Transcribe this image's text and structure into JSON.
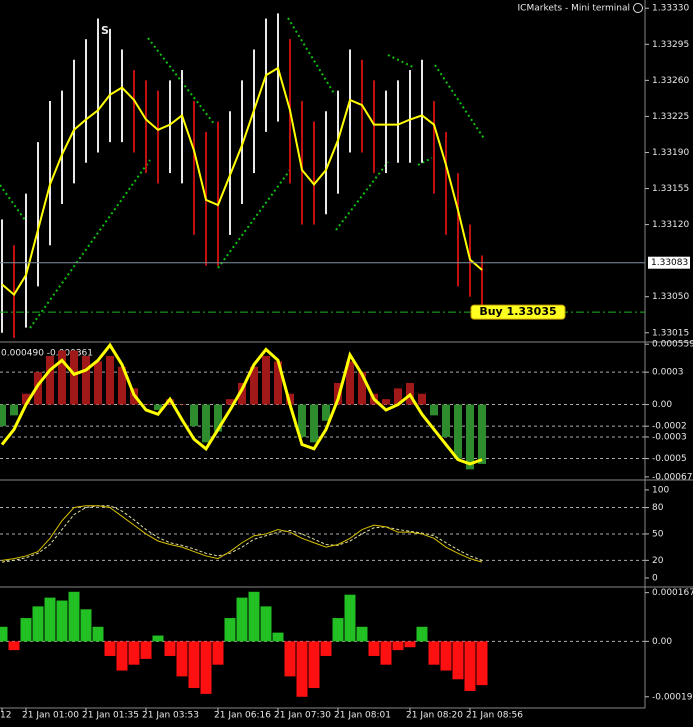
{
  "header": {
    "title": "ICMarkets - Mini terminal"
  },
  "chart_data": [
    {
      "type": "price",
      "annotation": "S",
      "categories": [
        "12",
        null,
        "21 Jan 01:00",
        null,
        null,
        null,
        null,
        "21 Jan 01:35",
        null,
        null,
        null,
        null,
        "21 Jan 03:53",
        null,
        null,
        null,
        null,
        null,
        "21 Jan 06:16",
        null,
        null,
        null,
        null,
        "21 Jan 07:30",
        null,
        null,
        null,
        null,
        "21 Jan 08:01",
        null,
        null,
        null,
        null,
        null,
        "21 Jan 08:20",
        null,
        null,
        null,
        null,
        "21 Jan 08:56",
        null
      ],
      "high": [
        1.33125,
        1.331,
        1.3315,
        1.332,
        1.3324,
        1.3325,
        1.3328,
        1.333,
        1.3332,
        1.3331,
        1.3329,
        1.3327,
        1.3326,
        1.3325,
        1.3326,
        1.3327,
        1.3324,
        1.3321,
        1.3322,
        1.3323,
        1.3326,
        1.3329,
        1.3332,
        1.33325,
        1.333,
        1.3324,
        1.3322,
        1.3323,
        1.3325,
        1.3329,
        1.3328,
        1.3326,
        1.3325,
        1.3326,
        1.3327,
        1.3328,
        1.3324,
        1.3321,
        1.3317,
        1.3312,
        1.3309
      ],
      "low": [
        1.33015,
        1.3301,
        1.3302,
        1.3306,
        1.331,
        1.3314,
        1.3316,
        1.3318,
        1.3319,
        1.332,
        1.332,
        1.3319,
        1.3317,
        1.3316,
        1.3317,
        1.3316,
        1.3311,
        1.3308,
        1.3308,
        1.3311,
        1.3314,
        1.3317,
        1.3321,
        1.3322,
        1.3316,
        1.3312,
        1.3312,
        1.3313,
        1.3315,
        1.3319,
        1.3319,
        1.3317,
        1.3317,
        1.3318,
        1.3318,
        1.3318,
        1.3315,
        1.3311,
        1.3306,
        1.3305,
        1.3304
      ],
      "values": [
        1.33062,
        1.33052,
        1.33071,
        1.33115,
        1.33159,
        1.33188,
        1.33212,
        1.33222,
        1.33231,
        1.33246,
        1.33253,
        1.33241,
        1.33222,
        1.33212,
        1.33217,
        1.33226,
        1.33192,
        1.33144,
        1.33139,
        1.33168,
        1.33197,
        1.33231,
        1.33265,
        1.33272,
        1.33231,
        1.33173,
        1.33159,
        1.33173,
        1.33202,
        1.33241,
        1.33236,
        1.33217,
        1.33217,
        1.33217,
        1.33222,
        1.33226,
        1.33217,
        1.33178,
        1.33134,
        1.33086,
        1.33076
      ],
      "color": "#ffff00",
      "up_color": "#e8e8e8",
      "down_color": "#c01010",
      "ylim": [
        1.33007,
        1.33338
      ],
      "yticks": [
        {
          "value": 1.3333,
          "label": "1.33330"
        },
        1.33295,
        {
          "value": 1.3326,
          "label": "1.33260"
        },
        1.33225,
        {
          "value": 1.3319,
          "label": "1.33190"
        },
        1.33155,
        {
          "value": 1.3312,
          "label": "1.33120"
        },
        {
          "value": 1.3305,
          "label": "1.33050"
        },
        1.33015
      ],
      "current_price": 1.33083,
      "order_label": "Buy 1.33035",
      "order_price": 1.33035
    },
    {
      "type": "macd",
      "title": "0.000490 -0.000361",
      "values": [
        -0.0002,
        -0.0001,
        0.0001,
        0.0003,
        0.00045,
        0.0005,
        0.0005,
        0.00045,
        0.0004,
        0.00045,
        0.00035,
        0.00015,
        0,
        -5e-05,
        5e-05,
        0,
        -0.0002,
        -0.00035,
        -0.00025,
        5e-05,
        0.0002,
        0.00035,
        0.00045,
        0.0004,
        0.0001,
        -0.0003,
        -0.00035,
        -0.00015,
        0.0002,
        0.0004,
        0.0003,
        0.0001,
        5e-05,
        0.00015,
        0.0002,
        0.0001,
        -0.0001,
        -0.0003,
        -0.0005,
        -0.0006,
        -0.00055
      ],
      "signal": [
        -0.00037,
        -0.00023,
        0,
        0.00018,
        0.00032,
        0.00041,
        0.00028,
        0.00032,
        0.00041,
        0.00055,
        0.00037,
        9e-05,
        -5e-05,
        -9e-05,
        5e-05,
        -0.00014,
        -0.00032,
        -0.00041,
        -0.00023,
        -5e-05,
        0.00014,
        0.00037,
        0.00051,
        0.00041,
        0,
        -0.00037,
        -0.00041,
        -0.00023,
        5e-05,
        0.00046,
        0.00028,
        5e-05,
        -5e-05,
        0,
        9e-05,
        -9e-05,
        -0.00023,
        -0.00037,
        -0.00051,
        -0.00055,
        -0.00051
      ],
      "color": "#ffff00",
      "up_color": "#a01818",
      "down_color": "#2e8b2e",
      "ylim": [
        -0.00068,
        0.00057
      ],
      "yticks": [
        0.000559,
        0.0003,
        {
          "value": 0,
          "label": "0.00"
        },
        -0.0002,
        -0.0003,
        -0.0005,
        -0.00067
      ]
    },
    {
      "type": "stochastic",
      "values": [
        20,
        22,
        25,
        30,
        45,
        65,
        80,
        82,
        82,
        80,
        70,
        60,
        50,
        42,
        38,
        35,
        30,
        25,
        22,
        30,
        40,
        48,
        50,
        55,
        52,
        45,
        40,
        35,
        38,
        45,
        55,
        60,
        58,
        52,
        52,
        50,
        45,
        35,
        28,
        22,
        18
      ],
      "signal": [
        18,
        20,
        23,
        28,
        38,
        55,
        72,
        80,
        82,
        82,
        76,
        66,
        55,
        46,
        40,
        37,
        33,
        28,
        25,
        28,
        35,
        44,
        48,
        52,
        54,
        50,
        44,
        38,
        37,
        42,
        50,
        57,
        58,
        55,
        53,
        51,
        48,
        40,
        32,
        25,
        20
      ],
      "color": "#d8c000",
      "signal_color": "#e0e0a0",
      "ylim": [
        -8,
        109
      ],
      "yticks": [
        100,
        80,
        50,
        20,
        0
      ]
    },
    {
      "type": "oscillator",
      "values": [
        5e-05,
        -3e-05,
        8e-05,
        0.00012,
        0.00015,
        0.00014,
        0.00017,
        0.00011,
        5e-05,
        -5e-05,
        -0.0001,
        -8e-05,
        -6e-05,
        2e-05,
        -5e-05,
        -0.00012,
        -0.00016,
        -0.00018,
        -8e-05,
        8e-05,
        0.00015,
        0.00017,
        0.00012,
        3e-05,
        -0.00012,
        -0.00019,
        -0.00016,
        -5e-05,
        8e-05,
        0.00016,
        5e-05,
        -5e-05,
        -8e-05,
        -3e-05,
        -2e-05,
        5e-05,
        -8e-05,
        -0.0001,
        -0.00013,
        -0.00017,
        -0.00015
      ],
      "up_color": "#22c022",
      "down_color": "#ff1010",
      "ylim": [
        -0.000225,
        0.000183
      ],
      "yticks": [
        0.000167,
        {
          "value": 0,
          "label": "0.00"
        },
        -0.00019
      ]
    }
  ]
}
